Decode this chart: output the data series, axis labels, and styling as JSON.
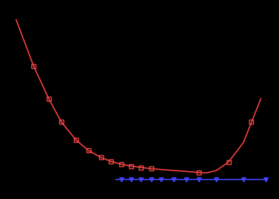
{
  "background_color": "#000000",
  "axes_bg_color": "#000000",
  "red_line_x": [
    0.02,
    0.09,
    0.15,
    0.2,
    0.26,
    0.31,
    0.36,
    0.4,
    0.44,
    0.48,
    0.52,
    0.56,
    0.6,
    0.65,
    0.7,
    0.75,
    0.78,
    0.82,
    0.87,
    0.93,
    1.0
  ],
  "red_line_y": [
    0.72,
    0.52,
    0.38,
    0.28,
    0.2,
    0.155,
    0.125,
    0.108,
    0.096,
    0.088,
    0.082,
    0.077,
    0.073,
    0.069,
    0.065,
    0.06,
    0.058,
    0.068,
    0.105,
    0.19,
    0.38
  ],
  "red_mark_x": [
    0.09,
    0.15,
    0.2,
    0.26,
    0.31,
    0.36,
    0.4,
    0.44,
    0.48,
    0.52,
    0.56,
    0.75,
    0.87,
    0.96
  ],
  "red_mark_y": [
    0.52,
    0.38,
    0.28,
    0.2,
    0.155,
    0.125,
    0.108,
    0.096,
    0.088,
    0.082,
    0.077,
    0.06,
    0.105,
    0.28
  ],
  "blue_line_x": [
    0.42,
    1.02
  ],
  "blue_line_y": [
    0.03,
    0.03
  ],
  "blue_mark_x": [
    0.44,
    0.48,
    0.52,
    0.56,
    0.6,
    0.65,
    0.7,
    0.75,
    0.82,
    0.93,
    1.02
  ],
  "blue_mark_y": [
    0.03,
    0.03,
    0.03,
    0.03,
    0.03,
    0.03,
    0.03,
    0.03,
    0.03,
    0.03,
    0.03
  ],
  "red_color": "#ff4444",
  "blue_color": "#4444ff",
  "red_marker": "s",
  "blue_marker": "v",
  "line_width": 1.2,
  "red_marker_size": 4,
  "blue_marker_size": 5,
  "xlim": [
    0.0,
    1.05
  ],
  "ylim": [
    -0.02,
    0.78
  ],
  "figsize": [
    4.0,
    2.86
  ],
  "dpi": 100
}
